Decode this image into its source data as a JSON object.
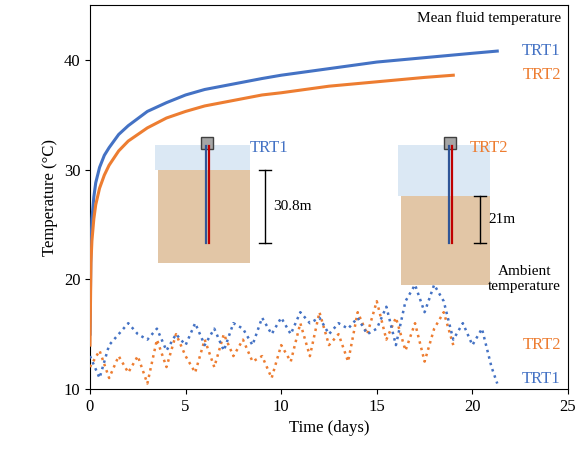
{
  "chart_data": {
    "type": "line",
    "xlabel": "Time (days)",
    "ylabel": "Temperature (°C)",
    "xlim": [
      0,
      25
    ],
    "xticks": [
      0,
      5,
      10,
      15,
      20,
      25
    ],
    "ylim": [
      10,
      45
    ],
    "yticks": [
      10,
      20,
      30,
      40
    ],
    "groups": [
      "Mean fluid temperature",
      "Ambient\ntemperature"
    ],
    "series": [
      {
        "name": "TRT1",
        "group": "Mean fluid temperature",
        "color": "#4472c4",
        "line_style": "solid",
        "x": [
          0,
          0.05,
          0.1,
          0.2,
          0.3,
          0.5,
          0.75,
          1,
          1.5,
          2,
          3,
          4,
          5,
          6,
          7.5,
          9,
          10,
          12.5,
          15,
          17.5,
          20,
          21.3
        ],
        "values": [
          15,
          23,
          25.5,
          27.5,
          28.8,
          30.2,
          31.3,
          32,
          33.2,
          34,
          35.3,
          36.1,
          36.8,
          37.3,
          37.8,
          38.3,
          38.6,
          39.2,
          39.8,
          40.2,
          40.6,
          40.8
        ]
      },
      {
        "name": "TRT2",
        "group": "Mean fluid temperature",
        "color": "#ed7d31",
        "line_style": "solid",
        "x": [
          0,
          0.05,
          0.1,
          0.2,
          0.3,
          0.5,
          0.75,
          1,
          1.5,
          2,
          3,
          4,
          5,
          6,
          7.5,
          9,
          10,
          12.5,
          15,
          17.5,
          19
        ],
        "values": [
          14,
          21.5,
          23.5,
          25.5,
          26.8,
          28.3,
          29.5,
          30.4,
          31.7,
          32.6,
          33.8,
          34.7,
          35.3,
          35.8,
          36.3,
          36.8,
          37,
          37.6,
          38,
          38.4,
          38.6
        ]
      },
      {
        "name": "TRT2",
        "group": "Ambient\ntemperature",
        "color": "#ed7d31",
        "line_style": "dotted",
        "x": [
          0,
          0.5,
          1,
          1.5,
          2,
          2.5,
          3,
          3.5,
          4,
          4.5,
          5,
          5.5,
          6,
          6.5,
          7,
          7.5,
          8,
          8.5,
          9,
          9.5,
          10,
          10.5,
          11,
          11.5,
          12,
          12.5,
          13,
          13.5,
          14,
          14.5,
          15,
          15.5,
          16,
          16.5,
          17,
          17.5,
          18,
          18.5,
          19
        ],
        "values": [
          12,
          13.5,
          11,
          13,
          11.5,
          13,
          10.5,
          14.5,
          12,
          15,
          13,
          11.5,
          14.5,
          12,
          15,
          13,
          14.5,
          12.5,
          13,
          11,
          14,
          12.5,
          16,
          13,
          17,
          14,
          15,
          12.5,
          17,
          15,
          18,
          14.5,
          16.5,
          13.5,
          16,
          12.5,
          15.5,
          17,
          14
        ]
      },
      {
        "name": "TRT1",
        "group": "Ambient\ntemperature",
        "color": "#4472c4",
        "line_style": "dotted",
        "x": [
          0,
          0.5,
          1,
          1.5,
          2,
          2.5,
          3,
          3.5,
          4,
          4.5,
          5,
          5.5,
          6,
          6.5,
          7,
          7.5,
          8,
          8.5,
          9,
          9.5,
          10,
          10.5,
          11,
          11.5,
          12,
          12.5,
          13,
          13.5,
          14,
          14.5,
          15,
          15.5,
          16,
          16.5,
          17,
          17.5,
          18,
          18.5,
          19,
          19.5,
          20,
          20.5,
          21,
          21.3
        ],
        "values": [
          13,
          11,
          14,
          15,
          16,
          15,
          14.5,
          15.5,
          13.5,
          15,
          14,
          16,
          14,
          15.5,
          13.5,
          16,
          15.5,
          14,
          16.5,
          15,
          16.5,
          15,
          17,
          16,
          16.5,
          15,
          16,
          15.5,
          16.5,
          15,
          15.5,
          17.5,
          14,
          18,
          19.5,
          17,
          19.5,
          18,
          14.5,
          16,
          14,
          15.5,
          12,
          10.5
        ]
      }
    ],
    "boreholes": [
      {
        "name": "TRT1",
        "color": "#4472c4",
        "depth_label": "30.8m"
      },
      {
        "name": "TRT2",
        "color": "#ed7d31",
        "depth_label": "21m"
      }
    ]
  }
}
